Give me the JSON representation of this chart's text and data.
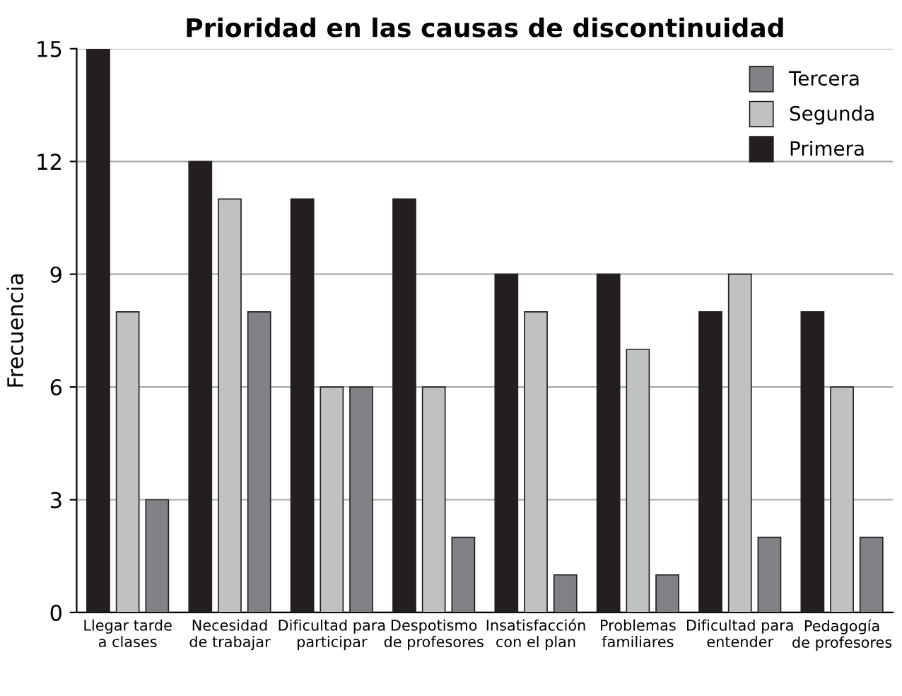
{
  "chart_data": {
    "type": "bar",
    "title": "Prioridad en las causas de discontinuidad",
    "ylabel": "Frecuencia",
    "categories": [
      "Llegar tarde\na clases",
      "Necesidad\nde trabajar",
      "Dificultad para\nparticipar",
      "Despotismo\nde profesores",
      "Insatisfacción\ncon el plan",
      "Problemas\nfamiliares",
      "Dificultad para\nentender",
      "Pedagogía\nde profesores"
    ],
    "series": [
      {
        "name": "Primera",
        "color": "#231f20",
        "values": [
          15,
          12,
          11,
          11,
          9,
          9,
          8,
          8
        ]
      },
      {
        "name": "Segunda",
        "color": "#c0c1c3",
        "values": [
          8,
          11,
          6,
          6,
          8,
          7,
          9,
          6
        ]
      },
      {
        "name": "Tercera",
        "color": "#808285",
        "values": [
          3,
          8,
          6,
          2,
          1,
          1,
          2,
          2
        ]
      }
    ],
    "ylim": [
      0,
      15
    ],
    "yticks": [
      0,
      3,
      6,
      9,
      12,
      15
    ],
    "grid": "y",
    "legend": "top right"
  }
}
